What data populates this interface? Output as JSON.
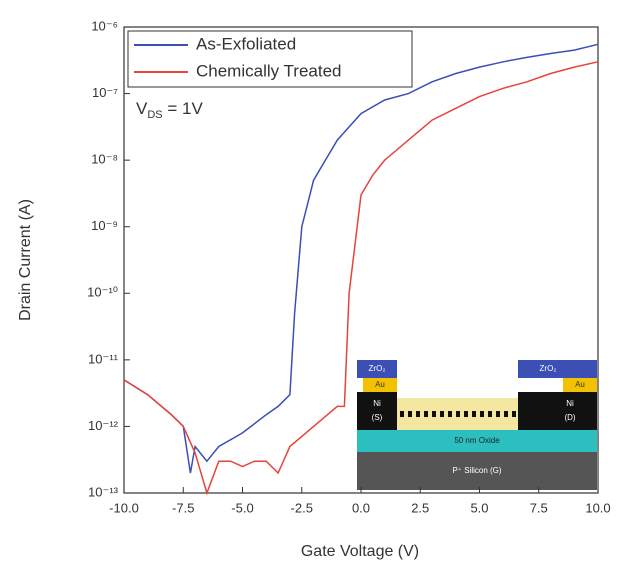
{
  "chart_data": {
    "type": "line",
    "x_label": "Gate Voltage (V)",
    "y_label": "Drain Current (A)",
    "log_y": true,
    "legend": "top-left",
    "annotation": {
      "main": "V",
      "sub": "DS",
      "rest": " = 1V"
    },
    "xlim": [
      -10,
      10
    ],
    "xticks": [
      {
        "value": -10,
        "label": "-10.0"
      },
      {
        "value": -7.5,
        "label": "-7.5"
      },
      {
        "value": -5,
        "label": "-5.0"
      },
      {
        "value": -2.5,
        "label": "-2.5"
      },
      {
        "value": 0,
        "label": "0.0"
      },
      {
        "value": 2.5,
        "label": "2.5"
      },
      {
        "value": 5,
        "label": "5.0"
      },
      {
        "value": 7.5,
        "label": "7.5"
      },
      {
        "value": 10,
        "label": "10.0"
      }
    ],
    "ylim": [
      1e-13,
      1e-06
    ],
    "yticks": [
      {
        "value": 1e-06,
        "label": "10⁻⁶"
      },
      {
        "value": 1e-07,
        "label": "10⁻⁷"
      },
      {
        "value": 1e-08,
        "label": "10⁻⁸"
      },
      {
        "value": 1e-09,
        "label": "10⁻⁹"
      },
      {
        "value": 1e-10,
        "label": "10⁻¹⁰"
      },
      {
        "value": 1e-11,
        "label": "10⁻¹¹"
      },
      {
        "value": 1e-12,
        "label": "10⁻¹²"
      },
      {
        "value": 1e-13,
        "label": "10⁻¹³"
      }
    ],
    "series": [
      {
        "name": "As-Exfoliated",
        "color": "#3b4fb5",
        "x": [
          -10,
          -9,
          -8,
          -7.5,
          -7.2,
          -7,
          -6.5,
          -6,
          -5,
          -4,
          -3.5,
          -3,
          -2.8,
          -2.5,
          -2,
          -1.5,
          -1,
          0,
          1,
          2,
          3,
          4,
          5,
          6,
          7,
          8,
          9,
          10
        ],
        "values": [
          5e-12,
          3e-12,
          1.5e-12,
          1e-12,
          2e-13,
          5e-13,
          3e-13,
          5e-13,
          8e-13,
          1.5e-12,
          2e-12,
          3e-12,
          5e-11,
          1e-09,
          5e-09,
          1e-08,
          2e-08,
          5e-08,
          8e-08,
          1e-07,
          1.5e-07,
          2e-07,
          2.5e-07,
          3e-07,
          3.5e-07,
          4e-07,
          4.5e-07,
          5.5e-07
        ]
      },
      {
        "name": "Chemically Treated",
        "color": "#e8433a",
        "x": [
          -10,
          -9,
          -8,
          -7.5,
          -7,
          -6.5,
          -6,
          -5.5,
          -5,
          -4.5,
          -4,
          -3.5,
          -3,
          -2,
          -1,
          -0.7,
          -0.5,
          0,
          0.5,
          1,
          2,
          3,
          4,
          5,
          6,
          7,
          8,
          9,
          10
        ],
        "values": [
          5e-12,
          3e-12,
          1.5e-12,
          1e-12,
          4e-13,
          1e-13,
          3e-13,
          3e-13,
          2.5e-13,
          3e-13,
          3e-13,
          2e-13,
          5e-13,
          1e-12,
          2e-12,
          2e-12,
          1e-10,
          3e-09,
          6e-09,
          1e-08,
          2e-08,
          4e-08,
          6e-08,
          9e-08,
          1.2e-07,
          1.5e-07,
          2e-07,
          2.5e-07,
          3e-07
        ]
      }
    ],
    "inset": {
      "zro2_left": "ZrO₂",
      "zro2_right": "ZrO₂",
      "au_left": "Au",
      "au_right": "Au",
      "ni_left": "Ni",
      "s": "(S)",
      "ni_right": "Ni",
      "d": "(D)",
      "oxide": "50 nm Oxide",
      "silicon": "P⁺ Silicon (G)"
    }
  }
}
